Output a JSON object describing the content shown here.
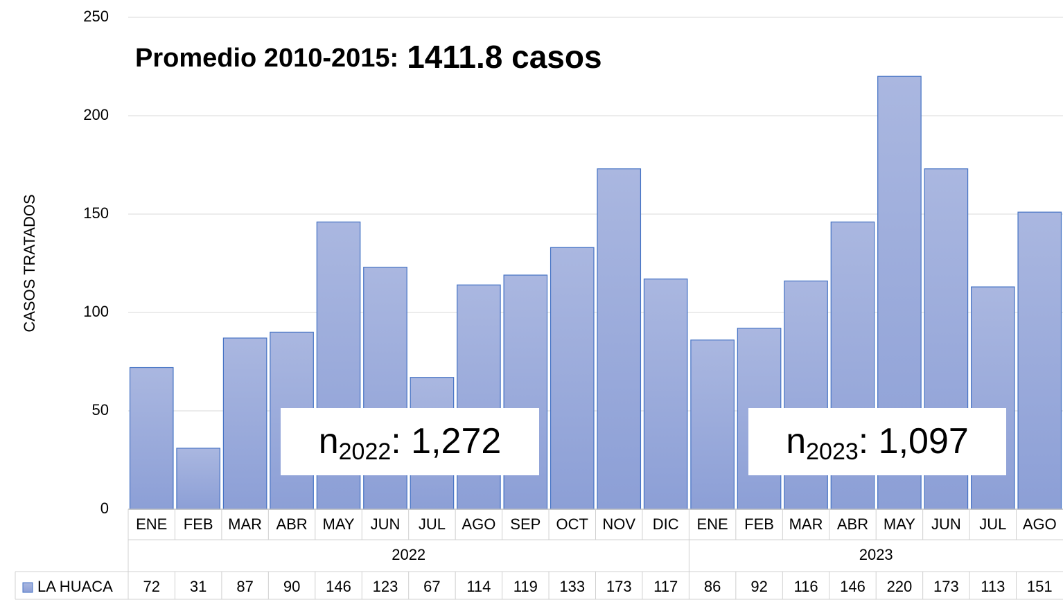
{
  "chart_data": {
    "type": "bar",
    "title": {
      "prefix": "Promedio 2010-2015:",
      "value": "1411.8 casos"
    },
    "y_label": "CASOS TRATADOS",
    "groups": [
      {
        "label": "2022",
        "categories": [
          "ENE",
          "FEB",
          "MAR",
          "ABR",
          "MAY",
          "JUN",
          "JUL",
          "AGO",
          "SEP",
          "OCT",
          "NOV",
          "DIC"
        ]
      },
      {
        "label": "2023",
        "categories": [
          "ENE",
          "FEB",
          "MAR",
          "ABR",
          "MAY",
          "JUN",
          "JUL",
          "AGO"
        ]
      }
    ],
    "series": [
      {
        "name": "LA HUACA",
        "color": "#4472c4",
        "values": [
          72,
          31,
          87,
          90,
          146,
          123,
          67,
          114,
          119,
          133,
          173,
          117,
          86,
          92,
          116,
          146,
          220,
          173,
          113,
          151
        ]
      }
    ],
    "annotations": [
      {
        "text": "n",
        "sub": "2022",
        "value": ": 1,272"
      },
      {
        "text": "n",
        "sub": "2023",
        "value": ": 1,097"
      }
    ],
    "ylim": [
      0,
      250
    ],
    "yticks": [
      0,
      50,
      100,
      150,
      200,
      250
    ],
    "grid": true
  }
}
